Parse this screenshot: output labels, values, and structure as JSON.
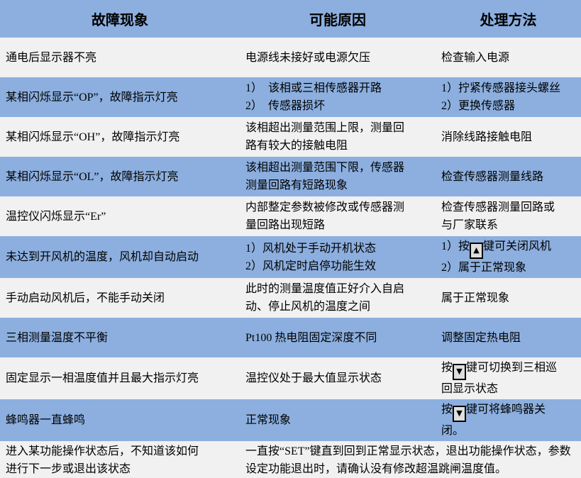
{
  "colors": {
    "row_blue": "#8cafdf",
    "row_light": "#f1f1f1",
    "text": "#000000",
    "key_bg": "#dedede",
    "key_border": "#000000"
  },
  "table": {
    "header": [
      "故障现象",
      "可能原因",
      "处理方法"
    ],
    "rows": [
      {
        "shade": "light",
        "cells": [
          {
            "lines": [
              [
                "通电后显示器不亮"
              ]
            ]
          },
          {
            "lines": [
              [
                "电源线未接好或电源欠压"
              ]
            ]
          },
          {
            "lines": [
              [
                "检查输入电源"
              ]
            ]
          }
        ]
      },
      {
        "shade": "blue",
        "cells": [
          {
            "lines": [
              [
                "某相闪烁显示“OP”，故障指示灯亮"
              ]
            ]
          },
          {
            "lines": [
              [
                "1）　该相或三相传感器开路"
              ],
              [
                "2）　传感器损坏"
              ]
            ]
          },
          {
            "lines": [
              [
                "1）拧紧传感器接头螺丝"
              ],
              [
                "2）更换传感器"
              ]
            ]
          }
        ]
      },
      {
        "shade": "light",
        "cells": [
          {
            "lines": [
              [
                "某相闪烁显示“OH”，故障指示灯亮"
              ]
            ]
          },
          {
            "lines": [
              [
                "该相超出测量范围上限，测量回路有较大的接触电阻"
              ]
            ]
          },
          {
            "lines": [
              [
                "消除线路接触电阻"
              ]
            ]
          }
        ]
      },
      {
        "shade": "blue",
        "cells": [
          {
            "lines": [
              [
                "某相闪烁显示“OL”，故障指示灯亮"
              ]
            ]
          },
          {
            "lines": [
              [
                "该相超出测量范围下限，传感器测量回路有短路现象"
              ]
            ]
          },
          {
            "lines": [
              [
                "检查传感器测量线路"
              ]
            ]
          }
        ]
      },
      {
        "shade": "light",
        "cells": [
          {
            "lines": [
              [
                "温控仪闪烁显示“Er”"
              ]
            ]
          },
          {
            "lines": [
              [
                "内部整定参数被修改或传感器测量回路出现短路"
              ]
            ]
          },
          {
            "lines": [
              [
                "检查传感器测量回路或与厂家联系"
              ]
            ]
          }
        ]
      },
      {
        "shade": "blue",
        "cells": [
          {
            "lines": [
              [
                "未达到开风机的温度，风机却自动启动"
              ]
            ]
          },
          {
            "lines": [
              [
                "1）风机处于手动开机状态"
              ],
              [
                "2）风机定时启停功能生效"
              ]
            ]
          },
          {
            "lines": [
              [
                "1）按",
                {
                  "key": "▲",
                  "name": "up-key-icon"
                },
                "键可关闭风机"
              ],
              [
                "2）属于正常现象"
              ]
            ]
          }
        ]
      },
      {
        "shade": "light",
        "cells": [
          {
            "lines": [
              [
                "手动启动风机后，不能手动关闭"
              ]
            ]
          },
          {
            "lines": [
              [
                "此时的测量温度值正好介入自启动、停止风机的温度之间"
              ]
            ]
          },
          {
            "lines": [
              [
                "属于正常现象"
              ]
            ]
          }
        ]
      },
      {
        "shade": "blue",
        "cells": [
          {
            "lines": [
              [
                "三相测量温度不平衡"
              ]
            ]
          },
          {
            "lines": [
              [
                "Pt100 热电阻固定深度不同"
              ]
            ]
          },
          {
            "lines": [
              [
                "调整固定热电阻"
              ]
            ]
          }
        ]
      },
      {
        "shade": "light",
        "cells": [
          {
            "lines": [
              [
                "固定显示一相温度值并且最大指示灯亮"
              ]
            ]
          },
          {
            "lines": [
              [
                "温控仪处于最大值显示状态"
              ]
            ]
          },
          {
            "lines": [
              [
                "按",
                {
                  "key": "▼",
                  "name": "down-key-icon"
                },
                "键可切换到三相巡回显示状态"
              ]
            ]
          }
        ]
      },
      {
        "shade": "blue",
        "cells": [
          {
            "lines": [
              [
                "蜂鸣器一直蜂鸣"
              ]
            ]
          },
          {
            "lines": [
              [
                "正常现象"
              ]
            ]
          },
          {
            "lines": [
              [
                "按",
                {
                  "key": "▼",
                  "name": "down-key-icon"
                },
                "键可将蜂鸣器关闭。"
              ]
            ]
          }
        ]
      },
      {
        "shade": "light",
        "cells": [
          {
            "lines": [
              [
                "进入某功能操作状态后，不知道该如何进行下一步或退出该状态"
              ]
            ]
          },
          {
            "colspan": 2,
            "lines": [
              [
                "一直按“SET”键直到回到正常显示状态，退出功能操作状态，参数设定功能退出时，请确认没有修改超温跳闸温度值。"
              ]
            ]
          }
        ]
      }
    ]
  }
}
